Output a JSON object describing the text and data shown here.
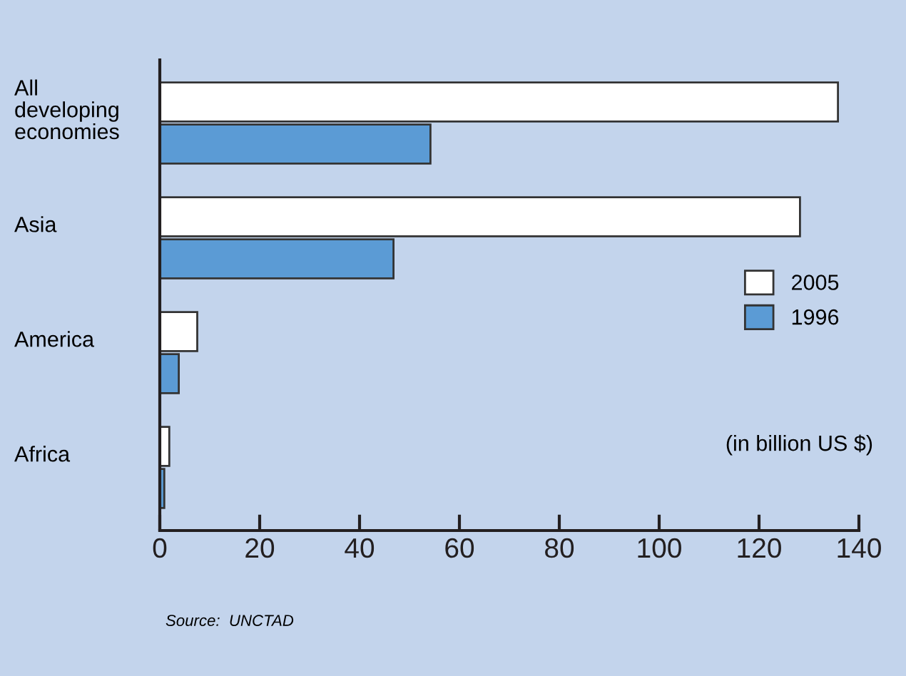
{
  "chart_data": {
    "type": "bar",
    "orientation": "horizontal",
    "categories": [
      "All\ndeveloping\neconomies",
      "Asia",
      "America",
      "Africa"
    ],
    "series": [
      {
        "name": "2005",
        "color": "#ffffff",
        "values": [
          135.8,
          128.2,
          7.5,
          1.9
        ]
      },
      {
        "name": "1996",
        "color": "#5b9bd5",
        "values": [
          54.2,
          46.8,
          3.8,
          0.9
        ]
      }
    ],
    "xlim": [
      0,
      140
    ],
    "xticks": [
      0,
      20,
      40,
      60,
      80,
      100,
      120,
      140
    ],
    "grid": false,
    "legend": "right",
    "annotations": [
      "(in billion US $)",
      "Source:  UNCTAD"
    ]
  }
}
